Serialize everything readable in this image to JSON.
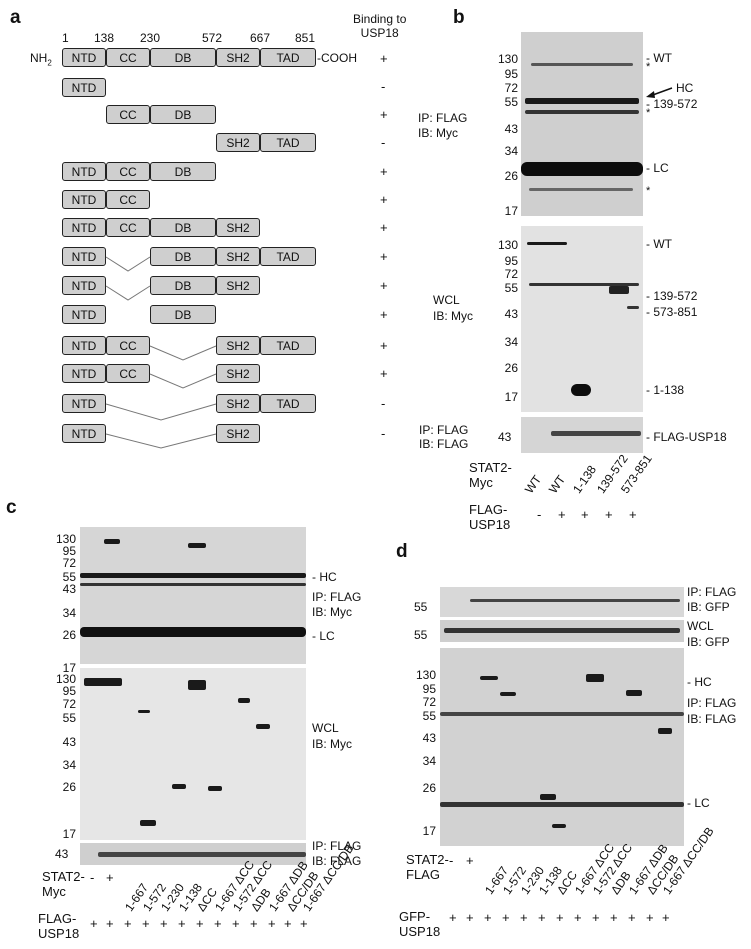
{
  "panels": {
    "a": "a",
    "b": "b",
    "c": "c",
    "d": "d"
  },
  "a": {
    "header": "Binding to\nUSP18",
    "nterm": "NH",
    "nterm_sub": "2",
    "cterm": "-COOH",
    "positions": [
      "1",
      "138",
      "230",
      "572",
      "667",
      "851"
    ],
    "domains": {
      "ntd": "NTD",
      "cc": "CC",
      "db": "DB",
      "sh2": "SH2",
      "tad": "TAD"
    },
    "binding": [
      "+",
      "-",
      "+",
      "-",
      "+",
      "+",
      "+",
      "+",
      "+",
      "+",
      "+",
      "+",
      "-",
      "-"
    ]
  },
  "b": {
    "ip_label_1": "IP: FLAG",
    "ib_label_1": "IB: Myc",
    "wcl_label": "WCL",
    "ib_label_2": "IB: Myc",
    "ip_label_3": "IP: FLAG",
    "ib_label_3": "IB: FLAG",
    "mw_top": [
      "130",
      "95",
      "72",
      "55",
      "43",
      "34",
      "26",
      "17"
    ],
    "mw_mid": [
      "130",
      "95",
      "72",
      "55",
      "43",
      "34",
      "26",
      "17"
    ],
    "mw_bottom": [
      "43"
    ],
    "annot_top": [
      "- WT",
      "*",
      "HC",
      "- 139-572",
      "*",
      "- LC",
      "*"
    ],
    "annot_mid": [
      "- WT",
      "- 139-572",
      "- 573-851",
      "- 1-138"
    ],
    "annot_bottom": "- FLAG-USP18",
    "stat2_label": "STAT2-\nMyc",
    "lanes": [
      "WT",
      "WT",
      "1-138",
      "139-572",
      "573-851"
    ],
    "flag_label": "FLAG-\nUSP18",
    "flag_signs": [
      "-",
      "+",
      "+",
      "+",
      "+"
    ]
  },
  "c": {
    "mw_top": [
      "130",
      "95",
      "72",
      "55",
      "43",
      "34",
      "26",
      "17"
    ],
    "mw_mid": [
      "130",
      "95",
      "72",
      "55",
      "43",
      "34",
      "26",
      "17"
    ],
    "mw_bottom": [
      "43"
    ],
    "annot_hc": "- HC",
    "ip_label": "IP: FLAG",
    "ib_label": "IB: Myc",
    "annot_lc": "- LC",
    "wcl_label": "WCL",
    "wcl_ib": "IB: Myc",
    "bottom_ip": "IP: FLAG",
    "bottom_ib": "IB: FLAG",
    "stat2_label": "STAT2-\nMyc",
    "lanes": [
      "-",
      "+",
      "1-667",
      "1-572",
      "1-230",
      "1-138",
      "ΔCC",
      "1-667 ΔCC",
      "1-572 ΔCC",
      "ΔDB",
      "1-667 ΔDB",
      "ΔCC/DB",
      "1-667 ΔCC/DB"
    ],
    "flag_label": "FLAG-\nUSP18",
    "flag_signs": [
      "+",
      "+",
      "+",
      "+",
      "+",
      "+",
      "+",
      "+",
      "+",
      "+",
      "+",
      "+",
      "+"
    ]
  },
  "d": {
    "mw_top": [
      "55"
    ],
    "mw_wcl": [
      "55"
    ],
    "mw_main": [
      "130",
      "95",
      "72",
      "55",
      "43",
      "34",
      "26",
      "17"
    ],
    "ip_label": "IP: FLAG",
    "ib_label": "IB: GFP",
    "wcl_label": "WCL",
    "wcl_ib": "IB: GFP",
    "annot_hc": "- HC",
    "ip2_label": "IP: FLAG",
    "ib2_label": "IB: FLAG",
    "annot_lc": "- LC",
    "stat2_label": "STAT2-\nFLAG",
    "lanes": [
      "-",
      "+",
      "1-667",
      "1-572",
      "1-230",
      "1-138",
      "ΔCC",
      "1-667 ΔCC",
      "1-572 ΔCC",
      "ΔDB",
      "1-667 ΔDB",
      "ΔCC/DB",
      "1-667 ΔCC/DB"
    ],
    "gfp_label": "GFP-\nUSP18",
    "gfp_signs": [
      "+",
      "+",
      "+",
      "+",
      "+",
      "+",
      "+",
      "+",
      "+",
      "+",
      "+",
      "+",
      "+"
    ]
  }
}
